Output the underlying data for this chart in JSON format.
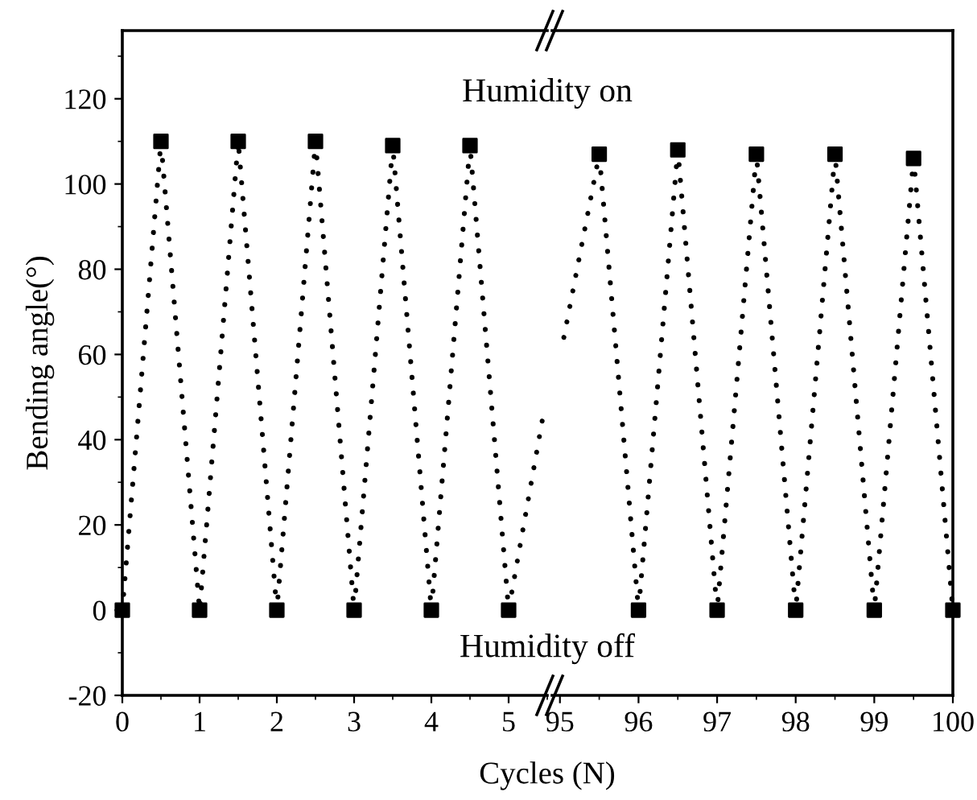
{
  "chart_data": [
    {
      "type": "line",
      "xlabel": "Cycles (N)",
      "ylabel": "Bending angle(°)",
      "annotations": [
        "Humidity on",
        "Humidity off"
      ],
      "xlim": [
        0,
        5.5
      ],
      "xticks": [
        0,
        1,
        2,
        3,
        4,
        5
      ],
      "ylim": [
        -20,
        136
      ],
      "yticks": [
        -20,
        0,
        20,
        40,
        60,
        80,
        100,
        120
      ],
      "grid": false,
      "tick_labels": "xy",
      "series": [
        {
          "color": "#000000",
          "line_style": "dotted",
          "marker": "none",
          "x": [
            0,
            0.5,
            1,
            1.5,
            2,
            2.5,
            3,
            3.5,
            4,
            4.5,
            5,
            5.45
          ],
          "values": [
            0,
            110,
            0,
            110,
            0,
            110,
            0,
            109,
            0,
            109,
            0,
            46
          ]
        },
        {
          "type": "scatter",
          "color": "#000000",
          "marker": "square",
          "x": [
            0,
            0.5,
            1,
            1.5,
            2,
            2.5,
            3,
            3.5,
            4,
            4.5,
            5
          ],
          "values": [
            0,
            110,
            0,
            110,
            0,
            110,
            0,
            109,
            0,
            109,
            0
          ]
        }
      ]
    },
    {
      "type": "line",
      "xlim": [
        94.9,
        100
      ],
      "xticks": [
        95,
        96,
        97,
        98,
        99,
        100
      ],
      "ylim": [
        -20,
        136
      ],
      "grid": false,
      "tick_labels": "x",
      "series": [
        {
          "color": "#000000",
          "line_style": "dotted",
          "marker": "none",
          "x": [
            95.05,
            95.5,
            96,
            96.5,
            97,
            97.5,
            98,
            98.5,
            99,
            99.5,
            100
          ],
          "values": [
            64,
            107,
            0,
            108,
            0,
            107,
            0,
            107,
            0,
            106,
            0
          ]
        },
        {
          "type": "scatter",
          "color": "#000000",
          "marker": "square",
          "x": [
            95.5,
            96,
            96.5,
            97,
            97.5,
            98,
            98.5,
            99,
            99.5,
            100
          ],
          "values": [
            107,
            0,
            108,
            0,
            107,
            0,
            107,
            0,
            106,
            0
          ]
        }
      ]
    }
  ]
}
